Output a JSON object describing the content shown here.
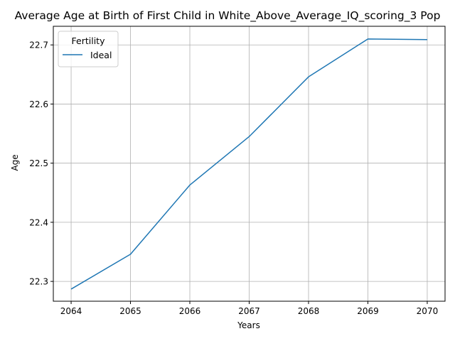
{
  "chart_data": {
    "type": "line",
    "title": "Average Age at Birth of First Child in White_Above_Average_IQ_scoring_3 Pop",
    "xlabel": "Years",
    "ylabel": "Age",
    "x": [
      2064,
      2065,
      2066,
      2067,
      2068,
      2069,
      2070
    ],
    "x_tick_labels": [
      "2064",
      "2065",
      "2066",
      "2067",
      "2068",
      "2069",
      "2070"
    ],
    "y_ticks": [
      22.3,
      22.4,
      22.5,
      22.6,
      22.7
    ],
    "y_tick_labels": [
      "22.3",
      "22.4",
      "22.5",
      "22.6",
      "22.7"
    ],
    "xlim": [
      2063.7,
      2070.3
    ],
    "ylim": [
      22.2665,
      22.7315
    ],
    "grid": true,
    "legend": {
      "title": "Fertility",
      "placement": "top-left"
    },
    "series": [
      {
        "name": "Ideal",
        "color": "#1f77b4",
        "values": [
          22.287,
          22.346,
          22.463,
          22.545,
          22.646,
          22.71,
          22.709
        ]
      }
    ]
  }
}
